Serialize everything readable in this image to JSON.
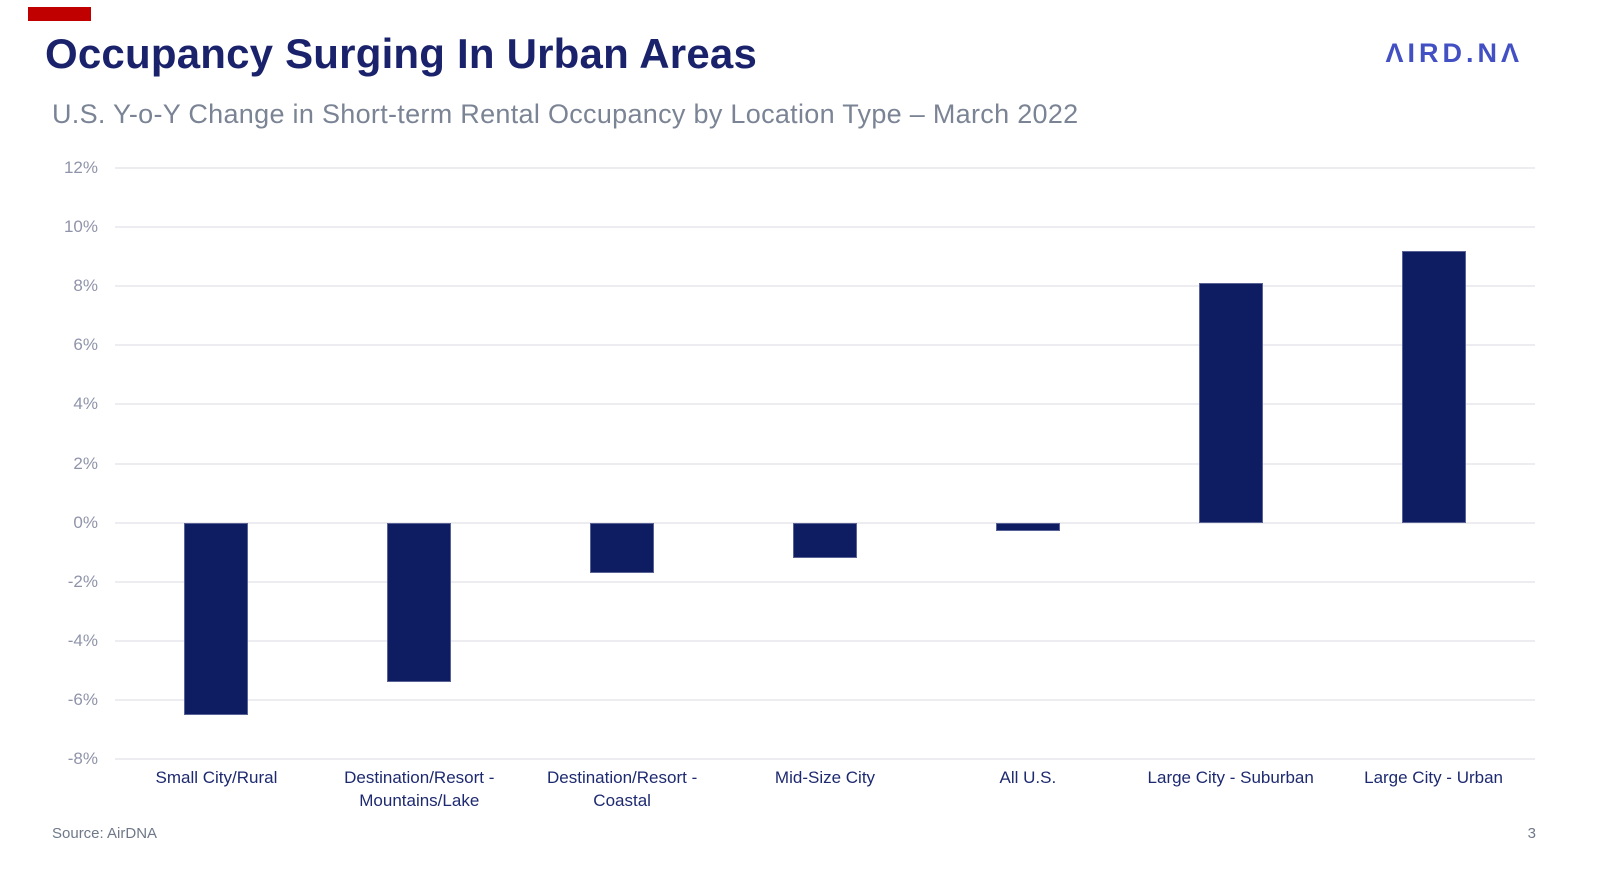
{
  "header": {
    "title": "Occupancy Surging In Urban Areas",
    "subtitle": "U.S. Y-o-Y Change in Short-term Rental Occupancy by Location Type – March 2022",
    "logo_text": "AIRDNA",
    "logo_display": "ΛIRD.NΛ"
  },
  "footer": {
    "source": "Source: AirDNA",
    "page_number": "3"
  },
  "colors": {
    "title": "#1a226b",
    "subtitle": "#7b8495",
    "bar": "#0e1d62",
    "axis_label": "#9094aa",
    "cat_label": "#1e2a70",
    "gridline": "#ececf1",
    "logo": "#4250c4",
    "accent_red": "#c00000",
    "footer_text": "#6f7888"
  },
  "chart_data": {
    "type": "bar",
    "title": "Occupancy Surging In Urban Areas",
    "subtitle": "U.S. Y-o-Y Change in Short-term Rental Occupancy by Location Type – March 2022",
    "categories": [
      "Small City/Rural",
      "Destination/Resort - Mountains/Lake",
      "Destination/Resort - Coastal",
      "Mid-Size City",
      "All U.S.",
      "Large City - Suburban",
      "Large City - Urban"
    ],
    "category_label_lines": [
      [
        "Small City/Rural"
      ],
      [
        "Destination/Resort -",
        "Mountains/Lake"
      ],
      [
        "Destination/Resort -",
        "Coastal"
      ],
      [
        "Mid-Size City"
      ],
      [
        "All U.S."
      ],
      [
        "Large City - Suburban"
      ],
      [
        "Large City - Urban"
      ]
    ],
    "values": [
      -6.5,
      -5.4,
      -1.7,
      -1.2,
      -0.3,
      8.1,
      9.2
    ],
    "unit": "%",
    "ylabel": "",
    "xlabel": "",
    "ylim": [
      -8,
      12
    ],
    "ytick_step": 2,
    "ytick_labels": [
      "12%",
      "10%",
      "8%",
      "6%",
      "4%",
      "2%",
      "0%",
      "-2%",
      "-4%",
      "-6%",
      "-8%"
    ],
    "grid": true,
    "legend": false
  }
}
